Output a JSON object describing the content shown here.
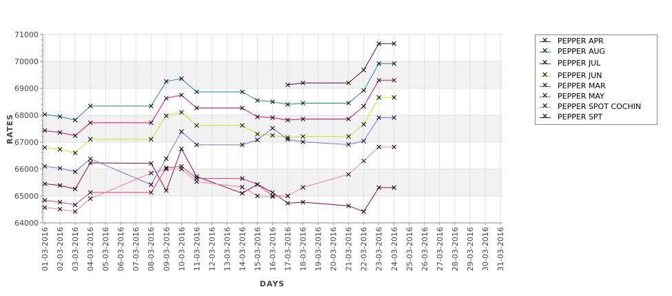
{
  "chart_data": {
    "type": "line",
    "title": "",
    "xlabel": "DAYS",
    "ylabel": "RATES",
    "ylim": [
      64000,
      71000
    ],
    "yticks": [
      "64000",
      "65000",
      "66000",
      "67000",
      "68000",
      "69000",
      "70000",
      "71000"
    ],
    "categories": [
      "01-03-2016",
      "02-03-2016",
      "03-03-2016",
      "04-03-2016",
      "05-03-2016",
      "06-03-2016",
      "07-03-2016",
      "08-03-2016",
      "09-03-2016",
      "10-03-2016",
      "11-03-2016",
      "12-03-2016",
      "13-03-2016",
      "14-03-2016",
      "15-03-2016",
      "16-03-2016",
      "17-03-2016",
      "18-03-2016",
      "19-03-2016",
      "20-03-2016",
      "21-03-2016",
      "22-03-2016",
      "23-03-2016",
      "24-03-2016",
      "25-03-2016",
      "26-03-2016",
      "27-03-2016",
      "28-03-2016",
      "29-03-2016",
      "30-03-2016",
      "31-03-2016"
    ],
    "grid": true,
    "legend_position": "right",
    "series": [
      {
        "name": "PEPPER APR",
        "color": "#8c0a45",
        "points": [
          [
            0,
            65450
          ],
          [
            1,
            65390
          ],
          [
            2,
            65260
          ],
          [
            3,
            66230
          ],
          [
            7,
            66210
          ],
          [
            8,
            65200
          ],
          [
            9,
            66750
          ],
          [
            10,
            65720
          ],
          [
            13,
            65100
          ],
          [
            14,
            65430
          ],
          [
            15,
            65130
          ],
          [
            16,
            64730
          ],
          [
            17,
            64770
          ],
          [
            20,
            64630
          ],
          [
            21,
            64420
          ],
          [
            22,
            65310
          ],
          [
            23,
            65310
          ]
        ]
      },
      {
        "name": "PEPPER AUG",
        "color": "#1a85a8",
        "points": [
          [
            0,
            68030
          ],
          [
            1,
            67950
          ],
          [
            2,
            67820
          ],
          [
            3,
            68340
          ],
          [
            7,
            68340
          ],
          [
            8,
            69260
          ],
          [
            9,
            69360
          ],
          [
            10,
            68870
          ],
          [
            13,
            68870
          ],
          [
            14,
            68550
          ],
          [
            15,
            68500
          ],
          [
            16,
            68400
          ],
          [
            17,
            68450
          ],
          [
            20,
            68450
          ],
          [
            21,
            68920
          ],
          [
            22,
            69920
          ],
          [
            23,
            69920
          ]
        ]
      },
      {
        "name": "PEPPER JUL",
        "color": "#e0086e",
        "points": [
          [
            0,
            67430
          ],
          [
            1,
            67360
          ],
          [
            2,
            67240
          ],
          [
            3,
            67720
          ],
          [
            7,
            67720
          ],
          [
            8,
            68630
          ],
          [
            9,
            68750
          ],
          [
            10,
            68270
          ],
          [
            13,
            68270
          ],
          [
            14,
            67940
          ],
          [
            15,
            67910
          ],
          [
            16,
            67820
          ],
          [
            17,
            67860
          ],
          [
            20,
            67860
          ],
          [
            21,
            68330
          ],
          [
            22,
            69300
          ],
          [
            23,
            69300
          ]
        ]
      },
      {
        "name": "PEPPER JUN",
        "color": "#b4ee10",
        "points": [
          [
            0,
            66800
          ],
          [
            1,
            66730
          ],
          [
            2,
            66600
          ],
          [
            3,
            67110
          ],
          [
            7,
            67110
          ],
          [
            8,
            67980
          ],
          [
            9,
            68110
          ],
          [
            10,
            67620
          ],
          [
            13,
            67620
          ],
          [
            14,
            67300
          ],
          [
            15,
            67250
          ],
          [
            16,
            67170
          ],
          [
            17,
            67210
          ],
          [
            20,
            67210
          ],
          [
            21,
            67660
          ],
          [
            22,
            68660
          ],
          [
            23,
            68660
          ]
        ]
      },
      {
        "name": "PEPPER MAR",
        "color": "#d83c7c",
        "points": [
          [
            0,
            64840
          ],
          [
            1,
            64770
          ],
          [
            2,
            64670
          ],
          [
            3,
            65130
          ],
          [
            7,
            65130
          ],
          [
            8,
            66050
          ],
          [
            9,
            66100
          ],
          [
            10,
            65650
          ],
          [
            13,
            65650
          ],
          [
            14,
            65430
          ],
          [
            15,
            65000
          ],
          [
            16,
            65000
          ]
        ]
      },
      {
        "name": "PEPPER MAY",
        "color": "#7b6ae6",
        "points": [
          [
            0,
            66100
          ],
          [
            1,
            66030
          ],
          [
            2,
            65900
          ],
          [
            3,
            66380
          ],
          [
            7,
            65420
          ],
          [
            8,
            66390
          ],
          [
            9,
            67390
          ],
          [
            10,
            66900
          ],
          [
            13,
            66900
          ],
          [
            14,
            67080
          ],
          [
            15,
            67520
          ],
          [
            16,
            67100
          ],
          [
            17,
            67010
          ],
          [
            20,
            66910
          ],
          [
            21,
            67040
          ],
          [
            22,
            67910
          ],
          [
            23,
            67910
          ]
        ]
      },
      {
        "name": "PEPPER SPOT COCHIN",
        "color": "#f0809a",
        "points": [
          [
            0,
            64570
          ],
          [
            1,
            64510
          ],
          [
            2,
            64420
          ],
          [
            3,
            64900
          ],
          [
            7,
            65850
          ],
          [
            8,
            66000
          ],
          [
            9,
            66000
          ],
          [
            10,
            65530
          ],
          [
            13,
            65330
          ],
          [
            14,
            65000
          ],
          [
            15,
            64980
          ],
          [
            16,
            65000
          ],
          [
            17,
            65320
          ],
          [
            20,
            65800
          ],
          [
            21,
            66300
          ],
          [
            22,
            66820
          ],
          [
            23,
            66820
          ]
        ]
      },
      {
        "name": "PEPPER SPT",
        "color": "#4a1236",
        "points": [
          [
            16,
            69130
          ],
          [
            17,
            69200
          ],
          [
            20,
            69200
          ],
          [
            21,
            69680
          ],
          [
            22,
            70660
          ],
          [
            23,
            70660
          ]
        ]
      }
    ]
  }
}
